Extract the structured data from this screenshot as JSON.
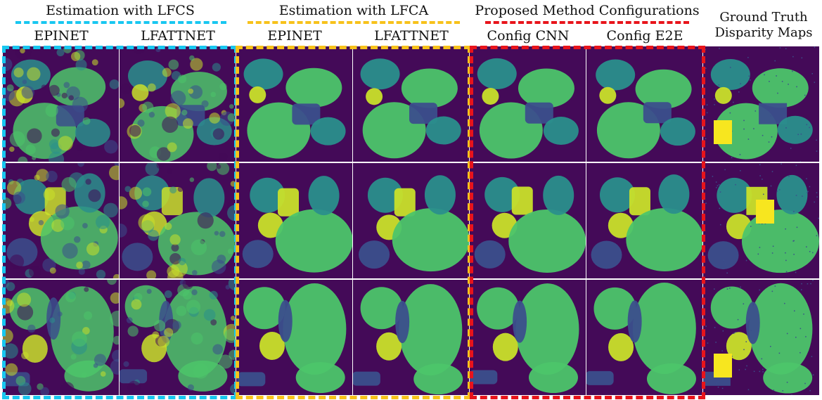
{
  "groups": [
    {
      "title": "Estimation with LFCS",
      "color": "#18c7f0"
    },
    {
      "title": "Estimation with LFCA",
      "color": "#f7c21b"
    },
    {
      "title": "Proposed Method Configurations",
      "color": "#e8141b"
    }
  ],
  "columns": [
    "EPINET",
    "LFATTNET",
    "EPINET",
    "LFATTNET",
    "Config CNN",
    "Config E2E"
  ],
  "ground_truth": {
    "line1": "Ground Truth",
    "line2": "Disparity Maps"
  },
  "palette": {
    "bg": "#440a58",
    "dark": "#3b4f8c",
    "mid": "#2a8f8c",
    "light": "#4cc56a",
    "bright": "#c9e02a",
    "yellow": "#f7e61f"
  }
}
